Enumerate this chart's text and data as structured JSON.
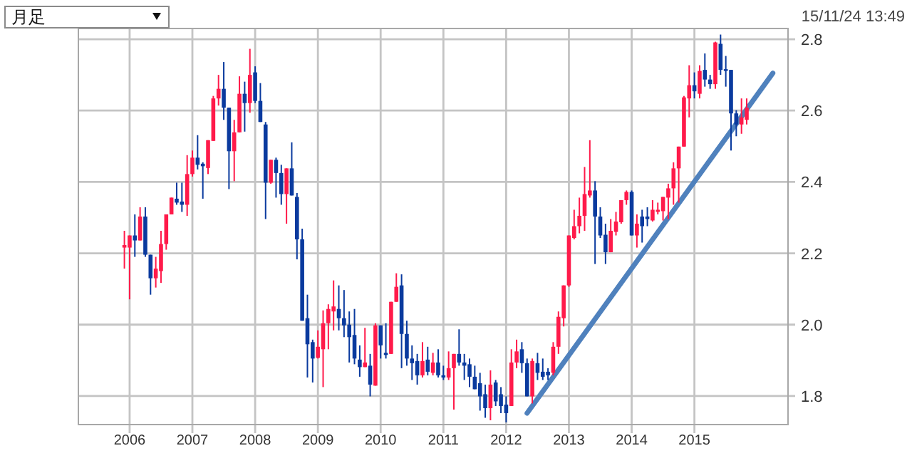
{
  "chart_data": {
    "type": "candlestick",
    "annotations": [
      "月足",
      "15/11/24 13:49"
    ],
    "xlim": [
      "2005-03-07",
      "2016-06-28"
    ],
    "xticks": [
      "2006",
      "2007",
      "2008",
      "2009",
      "2010",
      "2011",
      "2012",
      "2013",
      "2014",
      "2015"
    ],
    "ylim": [
      1.72,
      2.83
    ],
    "yticks": [
      1.8,
      {
        "value": 2,
        "label": "2.0"
      },
      2.2,
      2.4,
      2.6,
      2.8
    ],
    "grid": true,
    "series": [
      {
        "type": "candlestick",
        "color": "#ff1a4a",
        "x": [
          "2005-12",
          "2006-01",
          "2006-03",
          "2006-06",
          "2006-07",
          "2006-08",
          "2006-09",
          "2006-12",
          "2007-01",
          "2007-04",
          "2007-05",
          "2007-06",
          "2007-09",
          "2007-10",
          "2007-12",
          "2008-04",
          "2008-07",
          "2009-01",
          "2009-02",
          "2009-03",
          "2009-04",
          "2009-10",
          "2009-12",
          "2010-03",
          "2010-04",
          "2010-09",
          "2010-11",
          "2011-02",
          "2011-03",
          "2011-10",
          "2012-02",
          "2012-03",
          "2012-06",
          "2012-10",
          "2012-11",
          "2012-12",
          "2013-01",
          "2013-02",
          "2013-03",
          "2013-04",
          "2013-05",
          "2013-09",
          "2013-10",
          "2013-11",
          "2013-12",
          "2014-02",
          "2014-05",
          "2014-06",
          "2014-07",
          "2014-08",
          "2014-09",
          "2014-10",
          "2014-11",
          "2014-12",
          "2015-02",
          "2015-05",
          "2015-10",
          "2015-11"
        ],
        "ohlc": [
          [
            2.216,
            2.263,
            2.157,
            2.223
          ],
          [
            2.216,
            2.25,
            2.071,
            2.25
          ],
          [
            2.236,
            2.329,
            2.236,
            2.303
          ],
          [
            2.13,
            2.19,
            2.104,
            2.157
          ],
          [
            2.15,
            2.263,
            2.117,
            2.226
          ],
          [
            2.226,
            2.309,
            2.21,
            2.309
          ],
          [
            2.309,
            2.356,
            2.309,
            2.356
          ],
          [
            2.336,
            2.475,
            2.305,
            2.422
          ],
          [
            2.422,
            2.488,
            2.415,
            2.468
          ],
          [
            2.439,
            2.517,
            2.422,
            2.517
          ],
          [
            2.515,
            2.641,
            2.515,
            2.634
          ],
          [
            2.634,
            2.7,
            2.614,
            2.661
          ],
          [
            2.486,
            2.574,
            2.402,
            2.539
          ],
          [
            2.539,
            2.696,
            2.539,
            2.647
          ],
          [
            2.621,
            2.773,
            2.594,
            2.7
          ],
          [
            2.398,
            2.462,
            2.395,
            2.462
          ],
          [
            2.366,
            2.438,
            2.283,
            2.438
          ],
          [
            1.907,
            1.984,
            1.905,
            1.938
          ],
          [
            1.931,
            2.04,
            1.825,
            2.004
          ],
          [
            2.004,
            2.057,
            1.931,
            2.044
          ],
          [
            2.037,
            2.124,
            1.984,
            2.051
          ],
          [
            1.881,
            1.991,
            1.881,
            1.894
          ],
          [
            1.829,
            2.004,
            1.829,
            1.998
          ],
          [
            1.918,
            2.064,
            1.918,
            2.064
          ],
          [
            2.064,
            2.144,
            2.064,
            2.106
          ],
          [
            1.858,
            1.951,
            1.852,
            1.898
          ],
          [
            1.865,
            1.921,
            1.858,
            1.894
          ],
          [
            1.852,
            1.925,
            1.845,
            1.878
          ],
          [
            1.878,
            1.918,
            1.762,
            1.918
          ],
          [
            1.766,
            1.872,
            1.732,
            1.832
          ],
          [
            1.772,
            1.931,
            1.772,
            1.894
          ],
          [
            1.894,
            1.958,
            1.878,
            1.925
          ],
          [
            1.799,
            1.905,
            1.779,
            1.898
          ],
          [
            1.865,
            1.951,
            1.858,
            1.938
          ],
          [
            1.938,
            2.037,
            1.918,
            2.022
          ],
          [
            2.018,
            2.11,
            1.995,
            2.11
          ],
          [
            2.11,
            2.25,
            2.106,
            2.25
          ],
          [
            2.243,
            2.322,
            2.239,
            2.276
          ],
          [
            2.276,
            2.356,
            2.256,
            2.305
          ],
          [
            2.305,
            2.442,
            2.263,
            2.366
          ],
          [
            2.362,
            2.517,
            2.356,
            2.376
          ],
          [
            2.203,
            2.296,
            2.203,
            2.263
          ],
          [
            2.26,
            2.316,
            2.25,
            2.289
          ],
          [
            2.287,
            2.349,
            2.283,
            2.349
          ],
          [
            2.349,
            2.376,
            2.336,
            2.372
          ],
          [
            2.25,
            2.309,
            2.216,
            2.283
          ],
          [
            2.292,
            2.349,
            2.289,
            2.322
          ],
          [
            2.316,
            2.342,
            2.309,
            2.322
          ],
          [
            2.318,
            2.358,
            2.292,
            2.358
          ],
          [
            2.356,
            2.395,
            2.296,
            2.382
          ],
          [
            2.382,
            2.455,
            2.336,
            2.438
          ],
          [
            2.438,
            2.499,
            2.342,
            2.499
          ],
          [
            2.499,
            2.641,
            2.499,
            2.637
          ],
          [
            2.634,
            2.727,
            2.581,
            2.671
          ],
          [
            2.647,
            2.727,
            2.634,
            2.711
          ],
          [
            2.674,
            2.793,
            2.661,
            2.791
          ],
          [
            2.561,
            2.634,
            2.535,
            2.581
          ],
          [
            2.574,
            2.634,
            2.561,
            2.608
          ]
        ]
      },
      {
        "type": "candlestick",
        "color": "#0a3a9e",
        "x": [
          "2006-02",
          "2006-04",
          "2006-05",
          "2006-10",
          "2006-11",
          "2007-02",
          "2007-03",
          "2007-07",
          "2007-08",
          "2007-11",
          "2008-01",
          "2008-02",
          "2008-03",
          "2008-05",
          "2008-06",
          "2008-08",
          "2008-09",
          "2008-10",
          "2008-11",
          "2008-12",
          "2009-05",
          "2009-06",
          "2009-07",
          "2009-08",
          "2009-09",
          "2009-11",
          "2010-01",
          "2010-02",
          "2010-05",
          "2010-06",
          "2010-07",
          "2010-08",
          "2010-10",
          "2010-12",
          "2011-01",
          "2011-04",
          "2011-05",
          "2011-06",
          "2011-07",
          "2011-08",
          "2011-09",
          "2011-11",
          "2011-12",
          "2012-01",
          "2012-04",
          "2012-05",
          "2012-07",
          "2012-08",
          "2012-09",
          "2013-06",
          "2013-07",
          "2013-08",
          "2014-01",
          "2014-03",
          "2014-04",
          "2015-01",
          "2015-03",
          "2015-04",
          "2015-06",
          "2015-07",
          "2015-08",
          "2015-09"
        ],
        "ohlc": [
          [
            2.25,
            2.309,
            2.19,
            2.236
          ],
          [
            2.303,
            2.329,
            2.19,
            2.196
          ],
          [
            2.196,
            2.196,
            2.084,
            2.13
          ],
          [
            2.353,
            2.398,
            2.336,
            2.342
          ],
          [
            2.345,
            2.398,
            2.316,
            2.336
          ],
          [
            2.468,
            2.531,
            2.435,
            2.448
          ],
          [
            2.451,
            2.455,
            2.353,
            2.444
          ],
          [
            2.661,
            2.736,
            2.574,
            2.608
          ],
          [
            2.608,
            2.608,
            2.38,
            2.486
          ],
          [
            2.647,
            2.681,
            2.541,
            2.621
          ],
          [
            2.707,
            2.724,
            2.621,
            2.627
          ],
          [
            2.627,
            2.677,
            2.568,
            2.568
          ],
          [
            2.561,
            2.568,
            2.296,
            2.398
          ],
          [
            2.462,
            2.468,
            2.356,
            2.425
          ],
          [
            2.425,
            2.448,
            2.336,
            2.366
          ],
          [
            2.438,
            2.511,
            2.362,
            2.362
          ],
          [
            2.358,
            2.369,
            2.183,
            2.239
          ],
          [
            2.239,
            2.269,
            2.011,
            2.011
          ],
          [
            2.018,
            2.084,
            1.852,
            1.945
          ],
          [
            1.951,
            1.958,
            1.838,
            1.905
          ],
          [
            2.044,
            2.11,
            1.984,
            2.018
          ],
          [
            2.018,
            2.097,
            1.965,
            1.998
          ],
          [
            2.0,
            2.037,
            1.894,
            1.965
          ],
          [
            1.971,
            2.044,
            1.889,
            1.905
          ],
          [
            1.902,
            1.942,
            1.854,
            1.881
          ],
          [
            1.885,
            1.918,
            1.799,
            1.832
          ],
          [
            1.998,
            1.998,
            1.905,
            1.942
          ],
          [
            1.921,
            2.004,
            1.905,
            1.915
          ],
          [
            2.11,
            2.141,
            1.878,
            1.974
          ],
          [
            1.974,
            2.011,
            1.885,
            1.905
          ],
          [
            1.905,
            1.942,
            1.845,
            1.892
          ],
          [
            1.898,
            1.918,
            1.832,
            1.858
          ],
          [
            1.902,
            1.938,
            1.858,
            1.868
          ],
          [
            1.894,
            1.931,
            1.852,
            1.858
          ],
          [
            1.858,
            1.885,
            1.845,
            1.852
          ],
          [
            1.918,
            1.987,
            1.885,
            1.894
          ],
          [
            1.894,
            1.918,
            1.845,
            1.885
          ],
          [
            1.889,
            1.905,
            1.825,
            1.854
          ],
          [
            1.854,
            1.885,
            1.819,
            1.819
          ],
          [
            1.836,
            1.865,
            1.759,
            1.799
          ],
          [
            1.805,
            1.832,
            1.739,
            1.766
          ],
          [
            1.838,
            1.845,
            1.772,
            1.785
          ],
          [
            1.805,
            1.825,
            1.752,
            1.772
          ],
          [
            1.776,
            1.799,
            1.726,
            1.752
          ],
          [
            1.931,
            1.951,
            1.865,
            1.892
          ],
          [
            1.892,
            1.905,
            1.799,
            1.799
          ],
          [
            1.892,
            1.921,
            1.845,
            1.865
          ],
          [
            1.868,
            1.905,
            1.845,
            1.854
          ],
          [
            1.868,
            1.878,
            1.845,
            1.858
          ],
          [
            2.376,
            2.402,
            2.17,
            2.303
          ],
          [
            2.303,
            2.329,
            2.243,
            2.25
          ],
          [
            2.252,
            2.283,
            2.17,
            2.203
          ],
          [
            2.372,
            2.376,
            2.25,
            2.25
          ],
          [
            2.303,
            2.322,
            2.23,
            2.276
          ],
          [
            2.303,
            2.329,
            2.276,
            2.296
          ],
          [
            2.671,
            2.707,
            2.634,
            2.654
          ],
          [
            2.714,
            2.76,
            2.667,
            2.687
          ],
          [
            2.687,
            2.7,
            2.661,
            2.674
          ],
          [
            2.787,
            2.813,
            2.7,
            2.714
          ],
          [
            2.716,
            2.753,
            2.667,
            2.711
          ],
          [
            2.714,
            2.714,
            2.488,
            2.592
          ],
          [
            2.592,
            2.601,
            2.528,
            2.561
          ]
        ]
      },
      {
        "type": "line",
        "color": "#4f81bd",
        "x": [
          "2012-05",
          "2016-04"
        ],
        "values": [
          1.752,
          2.705
        ]
      }
    ]
  }
}
